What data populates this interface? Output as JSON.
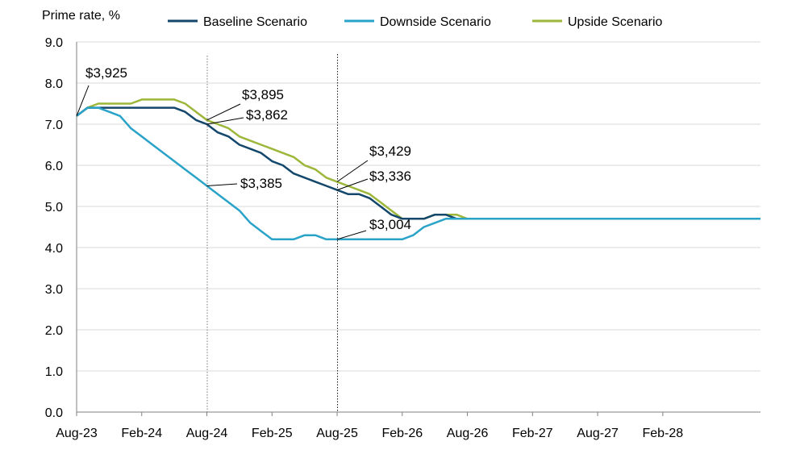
{
  "chart_data": {
    "type": "line",
    "ylabel": "Prime rate, %",
    "ylim": [
      0,
      9
    ],
    "yticks": [
      "0.0",
      "1.0",
      "2.0",
      "3.0",
      "4.0",
      "5.0",
      "6.0",
      "7.0",
      "8.0",
      "9.0"
    ],
    "x_start": "Aug-23",
    "x_end": "Jan-29",
    "xticks": [
      "Aug-23",
      "Feb-24",
      "Aug-24",
      "Feb-25",
      "Aug-25",
      "Feb-26",
      "Aug-26",
      "Feb-27",
      "Aug-27",
      "Feb-28"
    ],
    "grid": "horizontal",
    "legend_position": "top",
    "series": [
      {
        "name": "Baseline Scenario",
        "color": "#13476b",
        "values": [
          7.2,
          7.4,
          7.4,
          7.4,
          7.4,
          7.4,
          7.4,
          7.4,
          7.4,
          7.4,
          7.3,
          7.1,
          7.0,
          6.8,
          6.7,
          6.5,
          6.4,
          6.3,
          6.1,
          6.0,
          5.8,
          5.7,
          5.6,
          5.5,
          5.4,
          5.3,
          5.3,
          5.2,
          5.0,
          4.8,
          4.7,
          4.7,
          4.7,
          4.8,
          4.8,
          4.7,
          4.7,
          4.7,
          4.7,
          4.7,
          4.7,
          4.7,
          4.7,
          4.7,
          4.7,
          4.7,
          4.7,
          4.7,
          4.7,
          4.7,
          4.7,
          4.7,
          4.7,
          4.7,
          4.7,
          4.7,
          4.7,
          4.7,
          4.7,
          4.7,
          4.7,
          4.7,
          4.7,
          4.7
        ]
      },
      {
        "name": "Downside Scenario",
        "color": "#2aa3c9",
        "values": [
          7.2,
          7.4,
          7.4,
          7.3,
          7.2,
          6.9,
          6.7,
          6.5,
          6.3,
          6.1,
          5.9,
          5.7,
          5.5,
          5.3,
          5.1,
          4.9,
          4.6,
          4.4,
          4.2,
          4.2,
          4.2,
          4.3,
          4.3,
          4.2,
          4.2,
          4.2,
          4.2,
          4.2,
          4.2,
          4.2,
          4.2,
          4.3,
          4.5,
          4.6,
          4.7,
          4.7,
          4.7,
          4.7,
          4.7,
          4.7,
          4.7,
          4.7,
          4.7,
          4.7,
          4.7,
          4.7,
          4.7,
          4.7,
          4.7,
          4.7,
          4.7,
          4.7,
          4.7,
          4.7,
          4.7,
          4.7,
          4.7,
          4.7,
          4.7,
          4.7,
          4.7,
          4.7,
          4.7,
          4.7
        ]
      },
      {
        "name": "Upside Scenario",
        "color": "#9cb73a",
        "values": [
          7.2,
          7.4,
          7.5,
          7.5,
          7.5,
          7.5,
          7.6,
          7.6,
          7.6,
          7.6,
          7.5,
          7.3,
          7.1,
          7.0,
          6.9,
          6.7,
          6.6,
          6.5,
          6.4,
          6.3,
          6.2,
          6.0,
          5.9,
          5.7,
          5.6,
          5.5,
          5.4,
          5.3,
          5.1,
          4.9,
          4.7,
          4.7,
          4.7,
          4.8,
          4.8,
          4.8,
          4.7,
          4.7,
          4.7,
          4.7,
          4.7,
          4.7,
          4.7,
          4.7,
          4.7,
          4.7,
          4.7,
          4.7,
          4.7,
          4.7,
          4.7,
          4.7,
          4.7,
          4.7,
          4.7,
          4.7,
          4.7,
          4.7,
          4.7,
          4.7,
          4.7,
          4.7,
          4.7,
          4.7
        ]
      }
    ],
    "vertical_markers": [
      {
        "date": "Aug-24",
        "style": "dotted"
      },
      {
        "date": "Aug-25",
        "style": "dotted"
      }
    ],
    "annotations": [
      {
        "text": "$3,925",
        "date": "Aug-23",
        "y": 7.2
      },
      {
        "text": "$3,895",
        "date": "Aug-24",
        "y": 7.1
      },
      {
        "text": "$3,862",
        "date": "Aug-24",
        "y": 7.0
      },
      {
        "text": "$3,385",
        "date": "Aug-24",
        "y": 5.5
      },
      {
        "text": "$3,429",
        "date": "Aug-25",
        "y": 5.6
      },
      {
        "text": "$3,336",
        "date": "Aug-25",
        "y": 5.4
      },
      {
        "text": "$3,004",
        "date": "Aug-25",
        "y": 4.2
      }
    ]
  }
}
